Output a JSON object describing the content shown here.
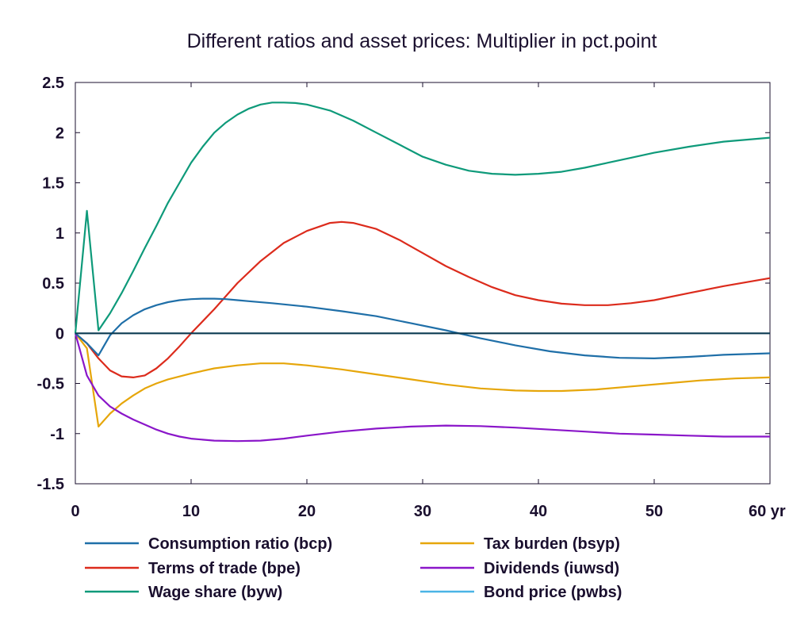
{
  "chart_data": {
    "type": "line",
    "title": "Different ratios and asset prices: Multiplier in pct.point",
    "xlabel": "",
    "ylabel": "",
    "xlim": [
      0,
      60
    ],
    "ylim": [
      -1.5,
      2.5
    ],
    "x_ticks": [
      {
        "value": 0,
        "label": "0"
      },
      {
        "value": 10,
        "label": "10"
      },
      {
        "value": 20,
        "label": "20"
      },
      {
        "value": 30,
        "label": "30"
      },
      {
        "value": 40,
        "label": "40"
      },
      {
        "value": 50,
        "label": "50"
      },
      {
        "value": 60,
        "label": "60 yr"
      }
    ],
    "y_ticks": [
      {
        "value": 2.5,
        "label": "2.5"
      },
      {
        "value": 2,
        "label": "2"
      },
      {
        "value": 1.5,
        "label": "1.5"
      },
      {
        "value": 1,
        "label": "1"
      },
      {
        "value": 0.5,
        "label": "0.5"
      },
      {
        "value": 0,
        "label": "0"
      },
      {
        "value": -0.5,
        "label": "-0.5"
      },
      {
        "value": -1,
        "label": "-1"
      },
      {
        "value": -1.5,
        "label": "-1.5"
      }
    ],
    "grid": false,
    "legend_position": "bottom",
    "series": [
      {
        "name": "Consumption ratio (bcp)",
        "color": "#1f6fa8",
        "points": [
          [
            0,
            0
          ],
          [
            1,
            -0.1
          ],
          [
            2,
            -0.22
          ],
          [
            3,
            -0.02
          ],
          [
            4,
            0.1
          ],
          [
            5,
            0.18
          ],
          [
            6,
            0.24
          ],
          [
            7,
            0.28
          ],
          [
            8,
            0.31
          ],
          [
            9,
            0.33
          ],
          [
            10,
            0.34
          ],
          [
            11,
            0.345
          ],
          [
            12,
            0.345
          ],
          [
            13,
            0.34
          ],
          [
            14,
            0.33
          ],
          [
            15,
            0.32
          ],
          [
            17,
            0.3
          ],
          [
            20,
            0.265
          ],
          [
            23,
            0.22
          ],
          [
            26,
            0.17
          ],
          [
            29,
            0.1
          ],
          [
            32,
            0.03
          ],
          [
            35,
            -0.05
          ],
          [
            38,
            -0.12
          ],
          [
            41,
            -0.18
          ],
          [
            44,
            -0.22
          ],
          [
            47,
            -0.245
          ],
          [
            50,
            -0.25
          ],
          [
            53,
            -0.235
          ],
          [
            56,
            -0.215
          ],
          [
            60,
            -0.2
          ]
        ]
      },
      {
        "name": "Terms of trade (bpe)",
        "color": "#dc2b1c",
        "points": [
          [
            0,
            0
          ],
          [
            1,
            -0.1
          ],
          [
            2,
            -0.25
          ],
          [
            3,
            -0.37
          ],
          [
            4,
            -0.43
          ],
          [
            5,
            -0.44
          ],
          [
            6,
            -0.42
          ],
          [
            7,
            -0.35
          ],
          [
            8,
            -0.25
          ],
          [
            9,
            -0.13
          ],
          [
            10,
            0
          ],
          [
            12,
            0.24
          ],
          [
            14,
            0.5
          ],
          [
            16,
            0.72
          ],
          [
            18,
            0.9
          ],
          [
            20,
            1.02
          ],
          [
            22,
            1.1
          ],
          [
            23,
            1.11
          ],
          [
            24,
            1.1
          ],
          [
            26,
            1.04
          ],
          [
            28,
            0.93
          ],
          [
            30,
            0.8
          ],
          [
            32,
            0.67
          ],
          [
            34,
            0.56
          ],
          [
            36,
            0.46
          ],
          [
            38,
            0.38
          ],
          [
            40,
            0.33
          ],
          [
            42,
            0.295
          ],
          [
            44,
            0.28
          ],
          [
            46,
            0.28
          ],
          [
            48,
            0.3
          ],
          [
            50,
            0.33
          ],
          [
            53,
            0.4
          ],
          [
            56,
            0.47
          ],
          [
            60,
            0.55
          ]
        ]
      },
      {
        "name": "Wage share (byw)",
        "color": "#0e9a7a",
        "points": [
          [
            0,
            0
          ],
          [
            1,
            1.22
          ],
          [
            2,
            0.03
          ],
          [
            3,
            0.2
          ],
          [
            4,
            0.4
          ],
          [
            5,
            0.62
          ],
          [
            6,
            0.85
          ],
          [
            7,
            1.07
          ],
          [
            8,
            1.3
          ],
          [
            9,
            1.5
          ],
          [
            10,
            1.7
          ],
          [
            11,
            1.86
          ],
          [
            12,
            2.0
          ],
          [
            13,
            2.1
          ],
          [
            14,
            2.18
          ],
          [
            15,
            2.24
          ],
          [
            16,
            2.28
          ],
          [
            17,
            2.3
          ],
          [
            18,
            2.3
          ],
          [
            19,
            2.295
          ],
          [
            20,
            2.28
          ],
          [
            22,
            2.22
          ],
          [
            24,
            2.12
          ],
          [
            26,
            2.0
          ],
          [
            28,
            1.88
          ],
          [
            30,
            1.76
          ],
          [
            32,
            1.68
          ],
          [
            34,
            1.62
          ],
          [
            36,
            1.59
          ],
          [
            38,
            1.58
          ],
          [
            40,
            1.59
          ],
          [
            42,
            1.61
          ],
          [
            44,
            1.65
          ],
          [
            46,
            1.7
          ],
          [
            48,
            1.75
          ],
          [
            50,
            1.8
          ],
          [
            53,
            1.86
          ],
          [
            56,
            1.91
          ],
          [
            60,
            1.95
          ]
        ]
      },
      {
        "name": "Tax burden (bsyp)",
        "color": "#e6a60a",
        "points": [
          [
            0,
            0
          ],
          [
            1,
            -0.15
          ],
          [
            2,
            -0.93
          ],
          [
            3,
            -0.8
          ],
          [
            4,
            -0.7
          ],
          [
            5,
            -0.62
          ],
          [
            6,
            -0.55
          ],
          [
            7,
            -0.5
          ],
          [
            8,
            -0.46
          ],
          [
            10,
            -0.4
          ],
          [
            12,
            -0.35
          ],
          [
            14,
            -0.32
          ],
          [
            16,
            -0.3
          ],
          [
            17,
            -0.3
          ],
          [
            18,
            -0.3
          ],
          [
            20,
            -0.32
          ],
          [
            23,
            -0.36
          ],
          [
            26,
            -0.41
          ],
          [
            29,
            -0.46
          ],
          [
            32,
            -0.51
          ],
          [
            35,
            -0.55
          ],
          [
            38,
            -0.57
          ],
          [
            40,
            -0.575
          ],
          [
            42,
            -0.575
          ],
          [
            45,
            -0.56
          ],
          [
            48,
            -0.53
          ],
          [
            51,
            -0.5
          ],
          [
            54,
            -0.47
          ],
          [
            57,
            -0.45
          ],
          [
            60,
            -0.44
          ]
        ]
      },
      {
        "name": "Dividends (iuwsd)",
        "color": "#8a16c9",
        "points": [
          [
            0,
            0
          ],
          [
            1,
            -0.42
          ],
          [
            2,
            -0.62
          ],
          [
            3,
            -0.73
          ],
          [
            4,
            -0.8
          ],
          [
            5,
            -0.86
          ],
          [
            6,
            -0.91
          ],
          [
            7,
            -0.96
          ],
          [
            8,
            -1.0
          ],
          [
            9,
            -1.03
          ],
          [
            10,
            -1.05
          ],
          [
            12,
            -1.07
          ],
          [
            14,
            -1.075
          ],
          [
            16,
            -1.07
          ],
          [
            18,
            -1.05
          ],
          [
            20,
            -1.02
          ],
          [
            23,
            -0.98
          ],
          [
            26,
            -0.95
          ],
          [
            29,
            -0.93
          ],
          [
            32,
            -0.92
          ],
          [
            35,
            -0.925
          ],
          [
            38,
            -0.94
          ],
          [
            41,
            -0.96
          ],
          [
            44,
            -0.98
          ],
          [
            47,
            -1.0
          ],
          [
            50,
            -1.01
          ],
          [
            53,
            -1.02
          ],
          [
            56,
            -1.03
          ],
          [
            60,
            -1.03
          ]
        ]
      },
      {
        "name": "Bond price (pwbs)",
        "color": "#4ab4e6",
        "points": [
          [
            0,
            0
          ],
          [
            60,
            0
          ]
        ]
      }
    ]
  }
}
